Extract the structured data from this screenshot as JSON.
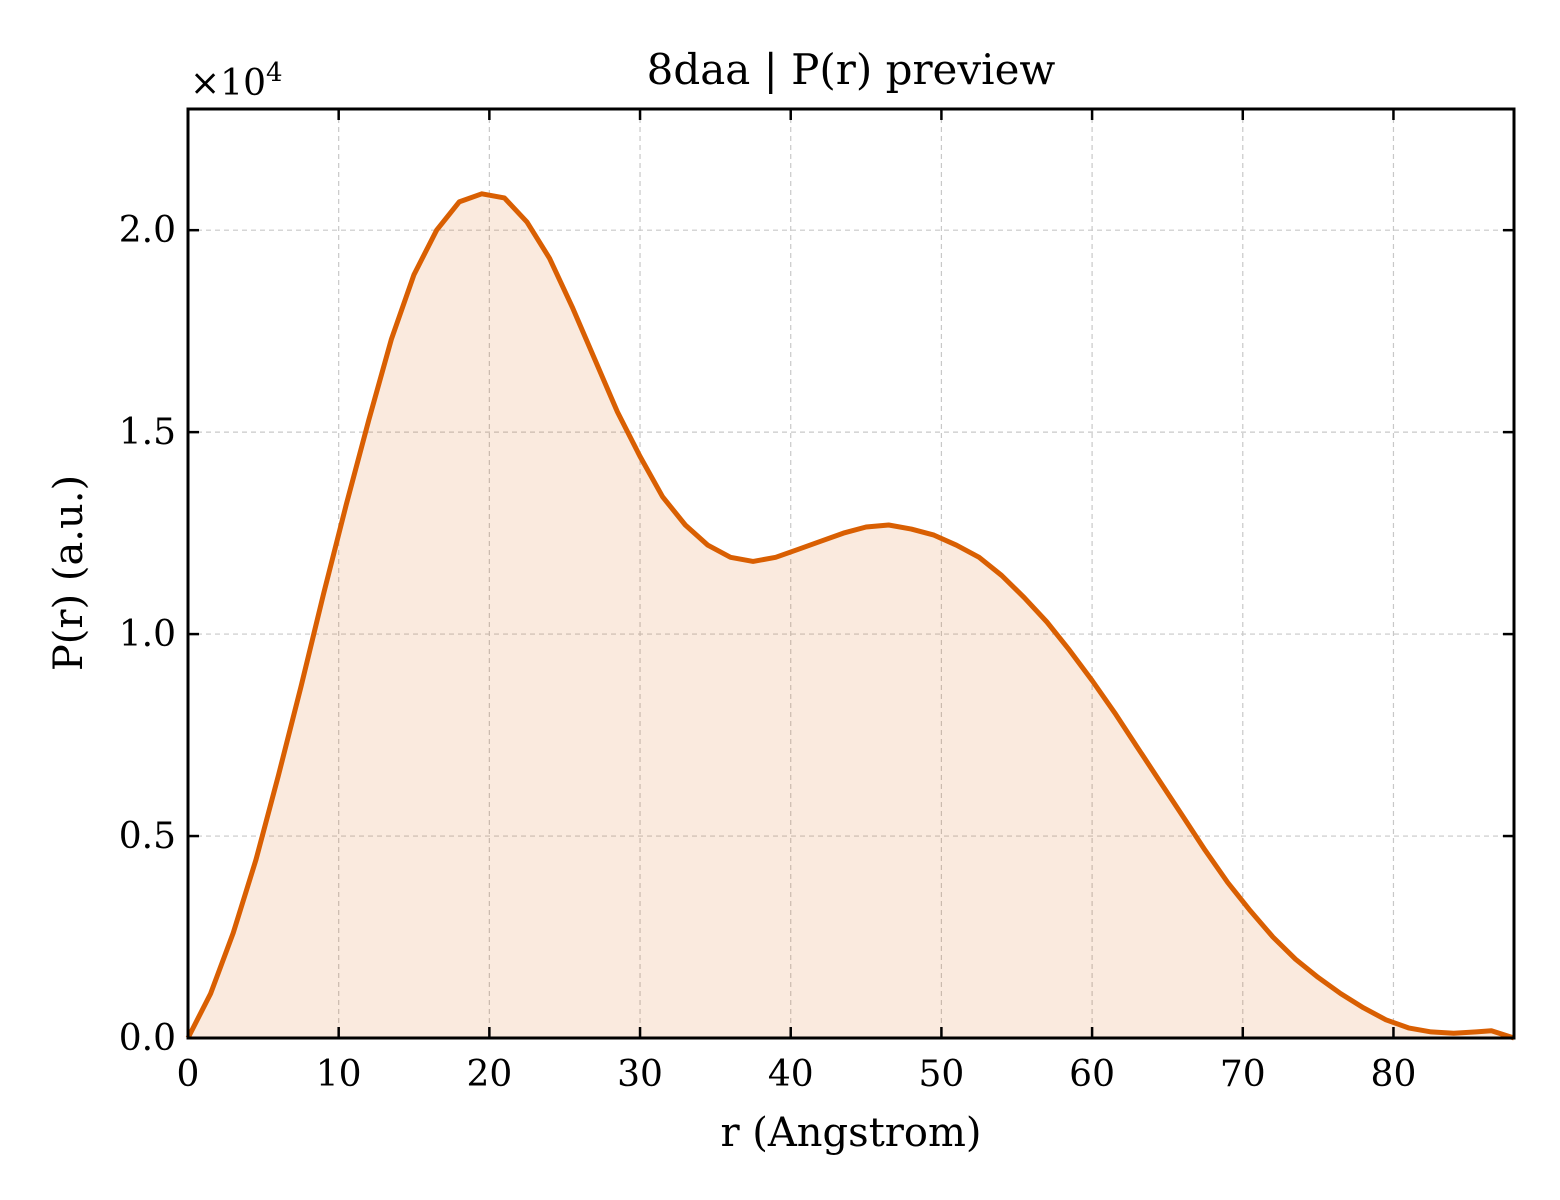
{
  "chart_data": {
    "type": "area",
    "title": "8daa | P(r) preview",
    "xlabel": "r (Angstrom)",
    "ylabel": "P(r) (a.u.)",
    "y_multiplier_label": "×10⁴",
    "y_multiplier_base": "×10",
    "y_multiplier_exp": "4",
    "xlim": [
      0,
      88
    ],
    "ylim": [
      0,
      2.3
    ],
    "y_scale_factor": 10000,
    "xticks": [
      0,
      10,
      20,
      30,
      40,
      50,
      60,
      70,
      80
    ],
    "xtick_labels": [
      "0",
      "10",
      "20",
      "30",
      "40",
      "50",
      "60",
      "70",
      "80"
    ],
    "yticks": [
      0.0,
      0.5,
      1.0,
      1.5,
      2.0
    ],
    "ytick_labels": [
      "0.0",
      "0.5",
      "1.0",
      "1.5",
      "2.0"
    ],
    "grid": true,
    "line_color": "#d95f02",
    "fill_color": "#d95f02",
    "series": [
      {
        "x": [
          0,
          1.5,
          3,
          4.5,
          6,
          7.5,
          9,
          10.5,
          12,
          13.5,
          15,
          16.5,
          18,
          19.5,
          21,
          22.5,
          24,
          25.5,
          27,
          28.5,
          30,
          31.5,
          33,
          34.5,
          36,
          37.5,
          39,
          40.5,
          42,
          43.5,
          45,
          46.5,
          48,
          49.5,
          51,
          52.5,
          54,
          55.5,
          57,
          58.5,
          60,
          61.5,
          63,
          64.5,
          66,
          67.5,
          69,
          70.5,
          72,
          73.5,
          75,
          76.5,
          78,
          79.5,
          81,
          82.5,
          84,
          85.5,
          86.5,
          88
        ],
        "y": [
          0.0,
          0.11,
          0.26,
          0.44,
          0.65,
          0.87,
          1.1,
          1.32,
          1.53,
          1.73,
          1.89,
          2.0,
          2.07,
          2.09,
          2.08,
          2.02,
          1.93,
          1.81,
          1.68,
          1.55,
          1.44,
          1.34,
          1.27,
          1.22,
          1.19,
          1.18,
          1.19,
          1.21,
          1.23,
          1.25,
          1.265,
          1.27,
          1.26,
          1.245,
          1.22,
          1.19,
          1.145,
          1.09,
          1.03,
          0.96,
          0.885,
          0.805,
          0.72,
          0.635,
          0.55,
          0.465,
          0.385,
          0.315,
          0.25,
          0.195,
          0.15,
          0.11,
          0.075,
          0.045,
          0.025,
          0.015,
          0.012,
          0.015,
          0.018,
          0.0
        ]
      }
    ]
  }
}
